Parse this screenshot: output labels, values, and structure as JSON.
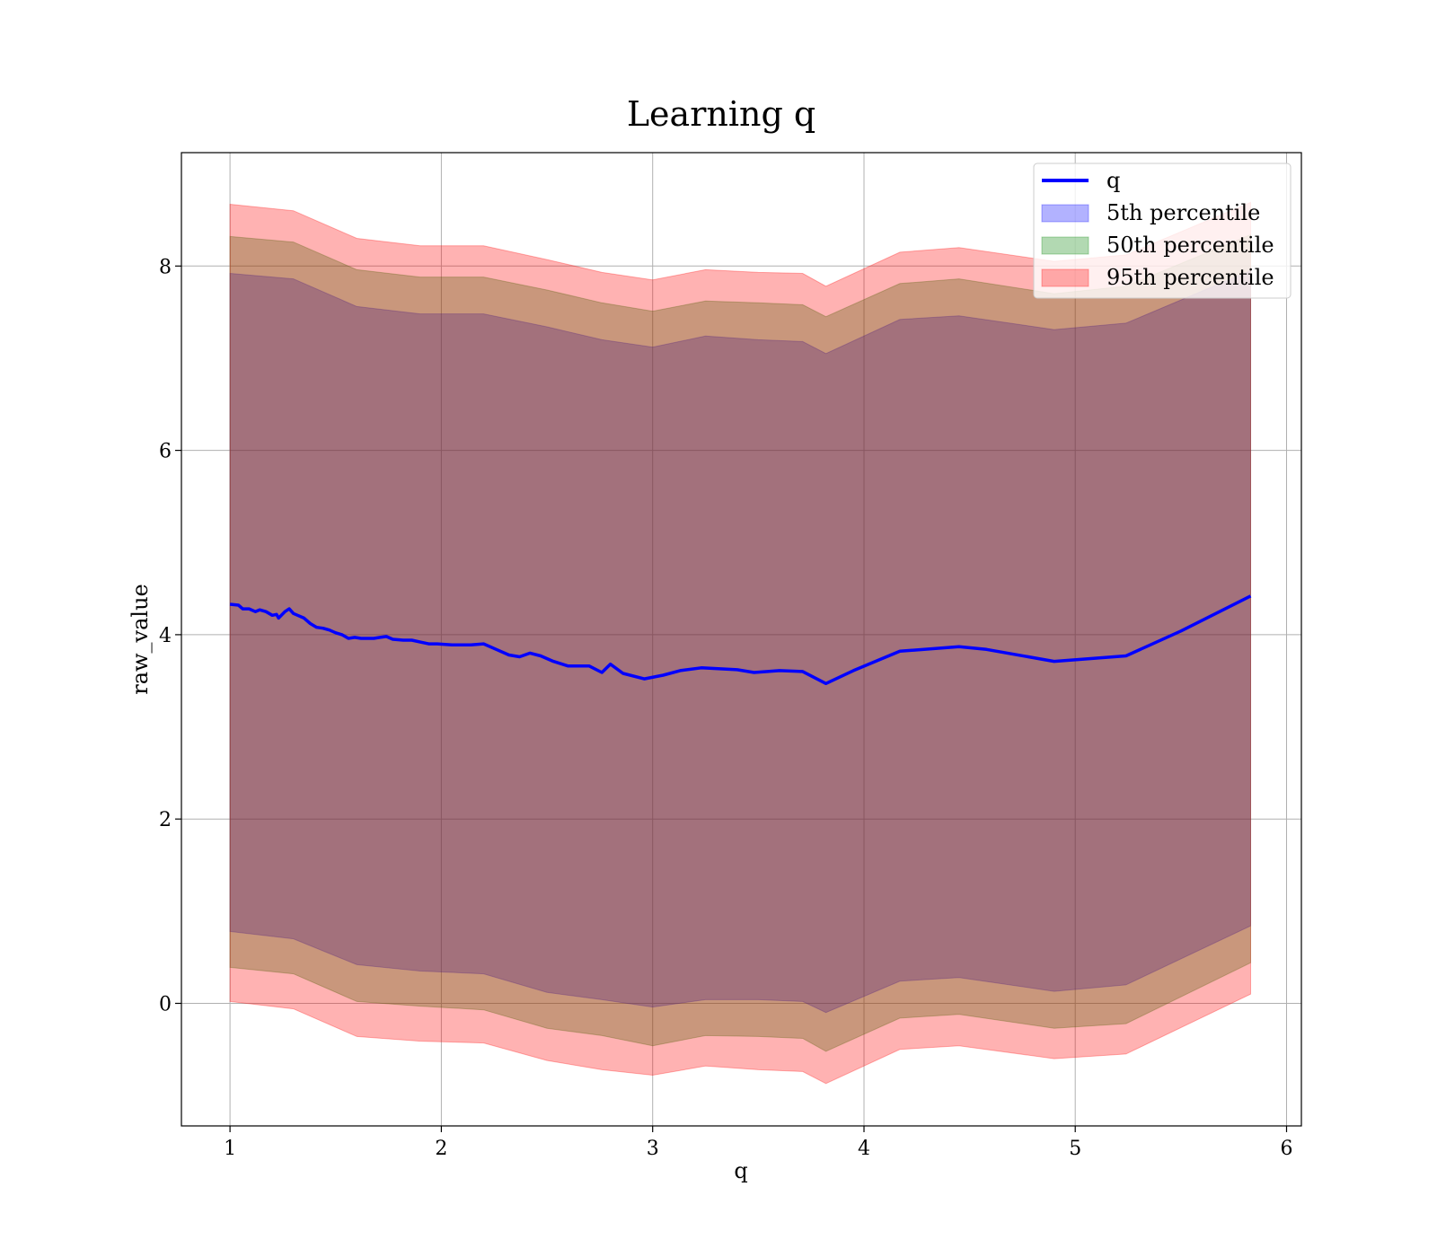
{
  "chart_data": {
    "type": "area",
    "title": "Learning q",
    "xlabel": "q",
    "ylabel": "raw_value",
    "xlim": [
      0.77,
      6.07
    ],
    "ylim": [
      -1.33,
      9.23
    ],
    "xticks": [
      1,
      2,
      3,
      4,
      5,
      6
    ],
    "yticks": [
      0,
      2,
      4,
      6,
      8
    ],
    "grid": true,
    "legend_position": "top-right",
    "line": {
      "name": "q",
      "color": "#0000ff",
      "x": [
        1.0,
        1.04,
        1.06,
        1.09,
        1.12,
        1.14,
        1.17,
        1.2,
        1.22,
        1.23,
        1.26,
        1.28,
        1.3,
        1.32,
        1.35,
        1.38,
        1.41,
        1.44,
        1.47,
        1.5,
        1.53,
        1.56,
        1.59,
        1.62,
        1.65,
        1.68,
        1.71,
        1.74,
        1.77,
        1.82,
        1.86,
        1.9,
        1.94,
        1.98,
        2.05,
        2.14,
        2.2,
        2.26,
        2.32,
        2.37,
        2.42,
        2.47,
        2.53,
        2.6,
        2.7,
        2.76,
        2.8,
        2.86,
        2.96,
        3.05,
        3.13,
        3.23,
        3.4,
        3.48,
        3.6,
        3.71,
        3.82,
        3.95,
        4.17,
        4.45,
        4.58,
        4.9,
        5.24,
        5.5,
        5.83
      ],
      "y": [
        4.33,
        4.32,
        4.28,
        4.28,
        4.25,
        4.27,
        4.25,
        4.21,
        4.22,
        4.18,
        4.25,
        4.28,
        4.23,
        4.21,
        4.18,
        4.12,
        4.08,
        4.07,
        4.05,
        4.02,
        4.0,
        3.96,
        3.97,
        3.96,
        3.96,
        3.96,
        3.97,
        3.98,
        3.95,
        3.94,
        3.94,
        3.92,
        3.9,
        3.9,
        3.89,
        3.89,
        3.9,
        3.84,
        3.78,
        3.76,
        3.8,
        3.77,
        3.71,
        3.66,
        3.66,
        3.59,
        3.68,
        3.58,
        3.52,
        3.56,
        3.61,
        3.64,
        3.62,
        3.59,
        3.61,
        3.6,
        3.47,
        3.61,
        3.82,
        3.87,
        3.84,
        3.71,
        3.77,
        4.04,
        4.42
      ]
    },
    "bands": [
      {
        "name": "5th percentile",
        "color": "#0000ff",
        "opacity": 0.3,
        "x": [
          1.0,
          1.3,
          1.6,
          1.9,
          2.2,
          2.5,
          2.76,
          3.0,
          3.25,
          3.5,
          3.71,
          3.82,
          4.17,
          4.45,
          4.9,
          5.24,
          5.83
        ],
        "lower": [
          0.78,
          0.7,
          0.42,
          0.35,
          0.32,
          0.12,
          0.04,
          -0.04,
          0.04,
          0.04,
          0.02,
          -0.1,
          0.24,
          0.28,
          0.13,
          0.2,
          0.84
        ],
        "upper": [
          7.92,
          7.86,
          7.56,
          7.48,
          7.48,
          7.34,
          7.2,
          7.12,
          7.24,
          7.2,
          7.18,
          7.05,
          7.42,
          7.46,
          7.31,
          7.38,
          7.95
        ]
      },
      {
        "name": "50th percentile",
        "color": "#008000",
        "opacity": 0.3,
        "x": [
          1.0,
          1.3,
          1.6,
          1.9,
          2.2,
          2.5,
          2.76,
          3.0,
          3.25,
          3.5,
          3.71,
          3.82,
          4.17,
          4.45,
          4.9,
          5.24,
          5.83
        ],
        "lower": [
          0.39,
          0.32,
          0.02,
          -0.03,
          -0.07,
          -0.27,
          -0.35,
          -0.46,
          -0.35,
          -0.36,
          -0.38,
          -0.52,
          -0.16,
          -0.12,
          -0.27,
          -0.22,
          0.44
        ],
        "upper": [
          8.32,
          8.26,
          7.96,
          7.88,
          7.88,
          7.74,
          7.6,
          7.51,
          7.62,
          7.6,
          7.58,
          7.45,
          7.81,
          7.86,
          7.7,
          7.78,
          8.34
        ]
      },
      {
        "name": "95th percentile",
        "color": "#ff0000",
        "opacity": 0.3,
        "x": [
          1.0,
          1.3,
          1.6,
          1.9,
          2.2,
          2.5,
          2.76,
          3.0,
          3.25,
          3.5,
          3.71,
          3.82,
          4.17,
          4.45,
          4.9,
          5.24,
          5.83
        ],
        "lower": [
          0.02,
          -0.06,
          -0.36,
          -0.41,
          -0.43,
          -0.62,
          -0.72,
          -0.78,
          -0.68,
          -0.72,
          -0.74,
          -0.87,
          -0.5,
          -0.46,
          -0.6,
          -0.55,
          0.1
        ],
        "upper": [
          8.67,
          8.6,
          8.3,
          8.22,
          8.22,
          8.07,
          7.93,
          7.85,
          7.96,
          7.93,
          7.92,
          7.78,
          8.15,
          8.2,
          8.05,
          8.12,
          8.69
        ]
      }
    ]
  }
}
